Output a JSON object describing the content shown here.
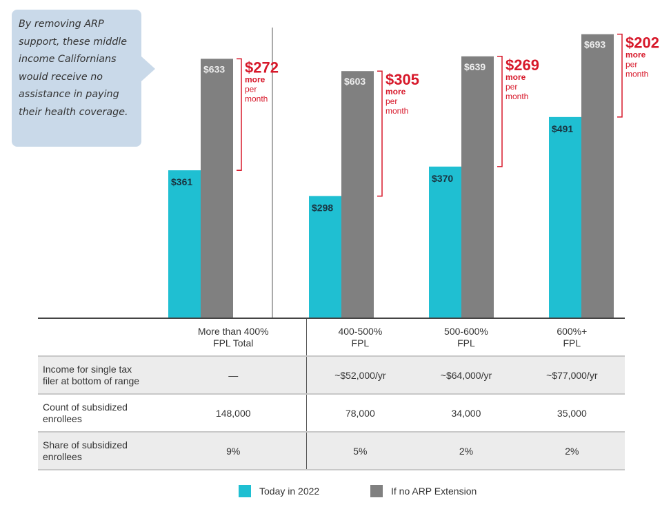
{
  "callout": {
    "text": "By removing ARP support, these middle income Californians would receive no assistance in paying their health coverage."
  },
  "chart_data": {
    "type": "bar",
    "categories": [
      "More than 400% FPL Total",
      "400-500% FPL",
      "500-600% FPL",
      "600%+ FPL"
    ],
    "series": [
      {
        "name": "Today in 2022",
        "values": [
          361,
          298,
          370,
          491
        ],
        "color": "#1fbfd2",
        "labels": [
          "$361",
          "$298",
          "$370",
          "$491"
        ]
      },
      {
        "name": "If no ARP Extension",
        "values": [
          633,
          603,
          639,
          693
        ],
        "color": "#808080",
        "labels": [
          "$633",
          "$603",
          "$639",
          "$693"
        ]
      }
    ],
    "differences": [
      {
        "amount": "$272",
        "line1": "more",
        "line2": "per",
        "line3": "month"
      },
      {
        "amount": "$305",
        "line1": "more",
        "line2": "per",
        "line3": "month"
      },
      {
        "amount": "$269",
        "line1": "more",
        "line2": "per",
        "line3": "month"
      },
      {
        "amount": "$202",
        "line1": "more",
        "line2": "per",
        "line3": "month"
      }
    ],
    "accent_color": "#d7182a",
    "ylim": [
      0,
      700
    ],
    "grid": false,
    "legend": "bottom"
  },
  "table": {
    "headers": [
      [
        "More than 400%",
        "FPL Total"
      ],
      [
        "400-500%",
        "FPL"
      ],
      [
        "500-600%",
        "FPL"
      ],
      [
        "600%+",
        "FPL"
      ]
    ],
    "rows": [
      {
        "label": [
          "Income for single tax",
          "filer at bottom of range"
        ],
        "cells": [
          "—",
          "~$52,000/yr",
          "~$64,000/yr",
          "~$77,000/yr"
        ]
      },
      {
        "label": [
          "Count of subsidized",
          "enrollees"
        ],
        "cells": [
          "148,000",
          "78,000",
          "34,000",
          "35,000"
        ]
      },
      {
        "label": [
          "Share of subsidized",
          "enrollees"
        ],
        "cells": [
          "9%",
          "5%",
          "2%",
          "2%"
        ]
      }
    ]
  },
  "legend": {
    "items": [
      "Today in 2022",
      "If no ARP Extension"
    ]
  }
}
